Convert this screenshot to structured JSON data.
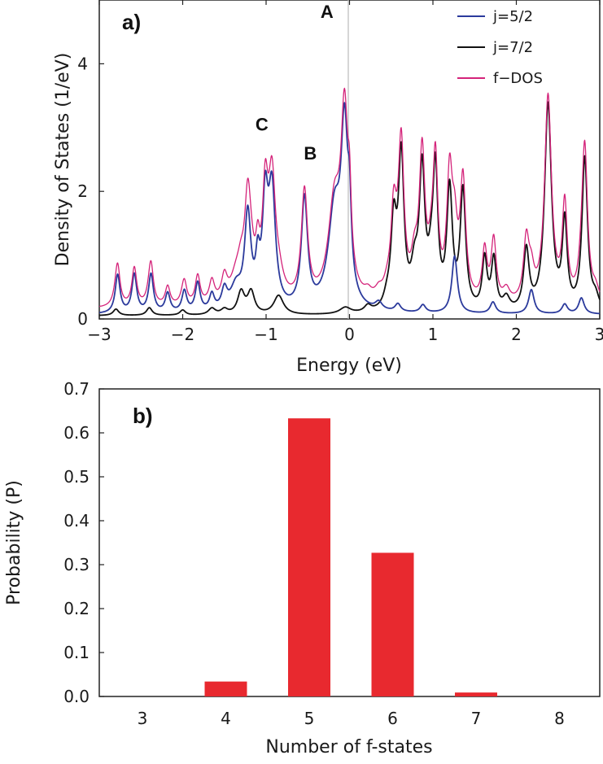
{
  "chart_data": [
    {
      "panel": "a)",
      "type": "line",
      "xlabel": "Energy (eV)",
      "ylabel": "Density of States (1/eV)",
      "xlim": [
        -3,
        3
      ],
      "ylim": [
        0,
        5
      ],
      "xticks": [
        -3,
        -2,
        -1,
        0,
        1,
        2,
        3
      ],
      "xtick_labels": [
        "−3",
        "−2",
        "−1",
        "0",
        "1",
        "2",
        "3"
      ],
      "yticks": [
        0,
        2,
        4
      ],
      "ytick_labels": [
        "0",
        "2",
        "4"
      ],
      "fermi_line_x": 0,
      "annotations": [
        {
          "text": "A",
          "x": -0.27,
          "y": 4.72
        },
        {
          "text": "B",
          "x": -0.47,
          "y": 2.5
        },
        {
          "text": "C",
          "x": -1.05,
          "y": 2.95
        }
      ],
      "legend": {
        "position": "top-right",
        "entries": [
          "j=5/2",
          "j=7/2",
          "f−DOS"
        ]
      },
      "series": [
        {
          "name": "j=5/2",
          "color": "#2b3a9c",
          "baseline": 0.07,
          "peaks": [
            {
              "x": -2.78,
              "h": 0.6,
              "w": 0.035
            },
            {
              "x": -2.58,
              "h": 0.6,
              "w": 0.035
            },
            {
              "x": -2.38,
              "h": 0.6,
              "w": 0.035
            },
            {
              "x": -2.18,
              "h": 0.3,
              "w": 0.035
            },
            {
              "x": -1.98,
              "h": 0.33,
              "w": 0.035
            },
            {
              "x": -1.82,
              "h": 0.45,
              "w": 0.035
            },
            {
              "x": -1.65,
              "h": 0.25,
              "w": 0.035
            },
            {
              "x": -1.5,
              "h": 0.3,
              "w": 0.04
            },
            {
              "x": -1.36,
              "h": 0.35,
              "w": 0.08
            },
            {
              "x": -1.22,
              "h": 1.45,
              "w": 0.045
            },
            {
              "x": -1.1,
              "h": 0.6,
              "w": 0.03
            },
            {
              "x": -1.01,
              "h": 1.55,
              "w": 0.04
            },
            {
              "x": -0.93,
              "h": 1.8,
              "w": 0.05
            },
            {
              "x": -0.54,
              "h": 1.72,
              "w": 0.045
            },
            {
              "x": -0.18,
              "h": 1.5,
              "w": 0.09
            },
            {
              "x": -0.06,
              "h": 2.6,
              "w": 0.05
            },
            {
              "x": 0.0,
              "h": 1.0,
              "w": 0.025
            },
            {
              "x": 0.35,
              "h": 0.12,
              "w": 0.05
            },
            {
              "x": 0.58,
              "h": 0.12,
              "w": 0.04
            },
            {
              "x": 0.88,
              "h": 0.12,
              "w": 0.04
            },
            {
              "x": 1.26,
              "h": 0.9,
              "w": 0.04
            },
            {
              "x": 1.72,
              "h": 0.18,
              "w": 0.04
            },
            {
              "x": 2.18,
              "h": 0.38,
              "w": 0.04
            },
            {
              "x": 2.58,
              "h": 0.15,
              "w": 0.04
            },
            {
              "x": 2.78,
              "h": 0.25,
              "w": 0.04
            }
          ]
        },
        {
          "name": "j=7/2",
          "color": "#111111",
          "baseline": 0.05,
          "peaks": [
            {
              "x": -2.8,
              "h": 0.1,
              "w": 0.04
            },
            {
              "x": -2.4,
              "h": 0.12,
              "w": 0.04
            },
            {
              "x": -2.0,
              "h": 0.08,
              "w": 0.04
            },
            {
              "x": -1.65,
              "h": 0.1,
              "w": 0.05
            },
            {
              "x": -1.5,
              "h": 0.08,
              "w": 0.05
            },
            {
              "x": -1.3,
              "h": 0.35,
              "w": 0.05
            },
            {
              "x": -1.18,
              "h": 0.35,
              "w": 0.05
            },
            {
              "x": -0.85,
              "h": 0.3,
              "w": 0.07
            },
            {
              "x": -0.05,
              "h": 0.1,
              "w": 0.08
            },
            {
              "x": 0.22,
              "h": 0.1,
              "w": 0.05
            },
            {
              "x": 0.45,
              "h": 0.15,
              "w": 0.05
            },
            {
              "x": 0.53,
              "h": 1.3,
              "w": 0.04
            },
            {
              "x": 0.62,
              "h": 2.35,
              "w": 0.04
            },
            {
              "x": 0.78,
              "h": 0.55,
              "w": 0.05
            },
            {
              "x": 0.87,
              "h": 2.1,
              "w": 0.04
            },
            {
              "x": 0.98,
              "h": 0.5,
              "w": 0.05
            },
            {
              "x": 1.03,
              "h": 2.0,
              "w": 0.035
            },
            {
              "x": 1.2,
              "h": 1.85,
              "w": 0.04
            },
            {
              "x": 1.36,
              "h": 1.85,
              "w": 0.04
            },
            {
              "x": 1.62,
              "h": 0.8,
              "w": 0.035
            },
            {
              "x": 1.73,
              "h": 0.8,
              "w": 0.035
            },
            {
              "x": 1.88,
              "h": 0.2,
              "w": 0.05
            },
            {
              "x": 2.12,
              "h": 0.95,
              "w": 0.04
            },
            {
              "x": 2.38,
              "h": 3.25,
              "w": 0.05
            },
            {
              "x": 2.58,
              "h": 1.35,
              "w": 0.035
            },
            {
              "x": 2.82,
              "h": 2.4,
              "w": 0.04
            },
            {
              "x": 2.95,
              "h": 0.2,
              "w": 0.05
            }
          ]
        },
        {
          "name": "f−DOS",
          "color": "#d4237a",
          "sum_of": [
            "j=5/2",
            "j=7/2"
          ],
          "offset": 0.04
        }
      ]
    },
    {
      "panel": "b)",
      "type": "bar",
      "xlabel": "Number of f-states",
      "ylabel": "Probability (P)",
      "categories": [
        "3",
        "4",
        "5",
        "6",
        "7",
        "8"
      ],
      "values": [
        0.0,
        0.034,
        0.633,
        0.327,
        0.009,
        0.0
      ],
      "ylim": [
        0,
        0.7
      ],
      "yticks": [
        0.0,
        0.1,
        0.2,
        0.3,
        0.4,
        0.5,
        0.6,
        0.7
      ],
      "ytick_labels": [
        "0.0",
        "0.1",
        "0.2",
        "0.3",
        "0.4",
        "0.5",
        "0.6",
        "0.7"
      ],
      "bar_color": "#e8292f"
    }
  ]
}
